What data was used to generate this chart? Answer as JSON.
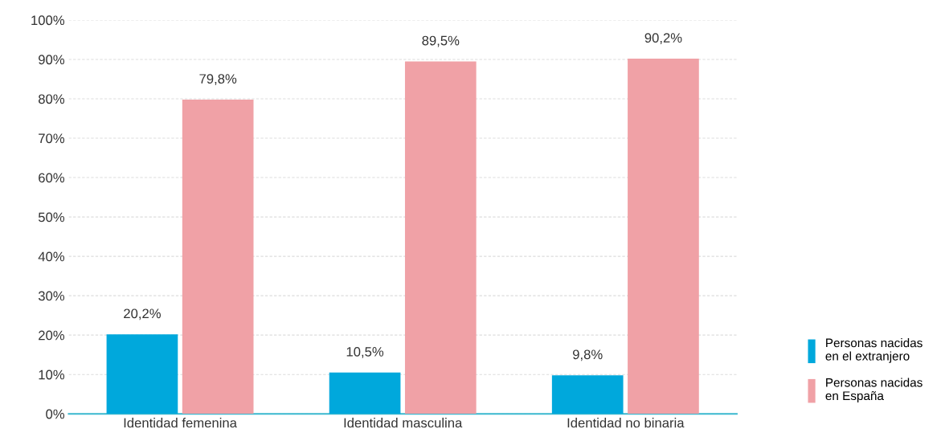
{
  "chart_data": {
    "type": "bar",
    "categories": [
      "Identidad femenina",
      "Identidad masculina",
      "Identidad no binaria"
    ],
    "series": [
      {
        "name": "Personas nacidas\nen el extranjero",
        "color": "#00a8dc",
        "values": [
          20.2,
          10.5,
          9.8
        ],
        "value_labels": [
          "20,2%",
          "10,5%",
          "9,8%"
        ]
      },
      {
        "name": "Personas nacidas\nen España",
        "color": "#f0a1a6",
        "values": [
          79.8,
          89.5,
          90.2
        ],
        "value_labels": [
          "79,8%",
          "89,5%",
          "90,2%"
        ]
      }
    ],
    "ylim": [
      0,
      100
    ],
    "yticks": [
      {
        "value": 0,
        "label": "0%"
      },
      {
        "value": 10,
        "label": "10%"
      },
      {
        "value": 20,
        "label": "20%"
      },
      {
        "value": 30,
        "label": "30%"
      },
      {
        "value": 40,
        "label": "40%"
      },
      {
        "value": 50,
        "label": "50%"
      },
      {
        "value": 60,
        "label": "60%"
      },
      {
        "value": 70,
        "label": "70%"
      },
      {
        "value": 80,
        "label": "80%"
      },
      {
        "value": 90,
        "label": "90%"
      },
      {
        "value": 100,
        "label": "100%"
      }
    ],
    "grid": "y",
    "legend": "bottom right"
  }
}
